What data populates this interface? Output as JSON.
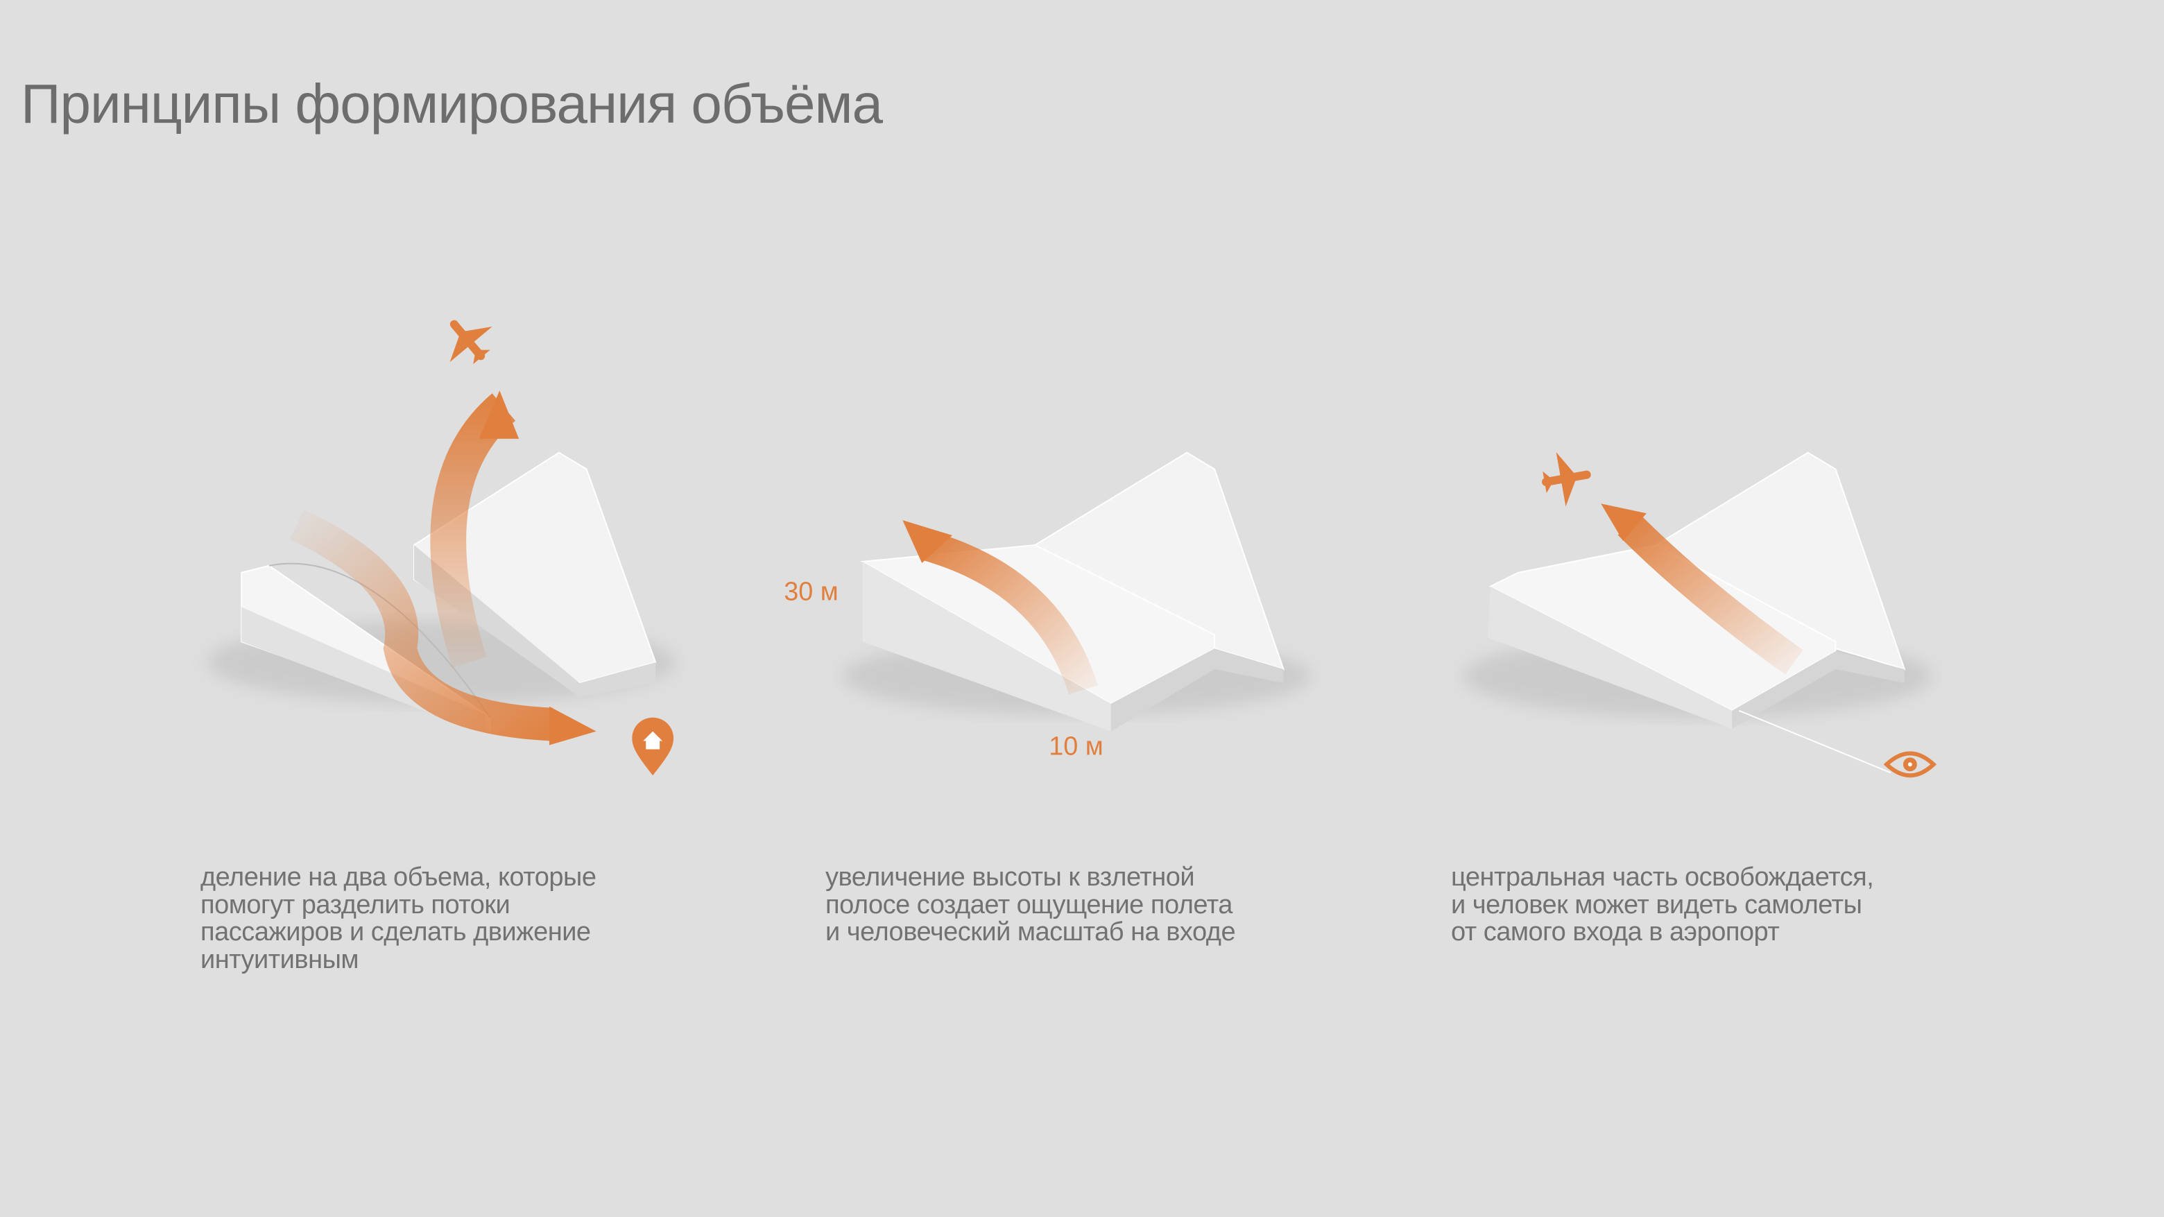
{
  "title": "Принципы формирования объёма",
  "colors": {
    "background": "#dfdfdf",
    "accent": "#e07f3e",
    "text": "#6d6d6d"
  },
  "diagrams": [
    {
      "icons": [
        "airplane-icon",
        "home-pin-icon"
      ],
      "caption": [
        "деление на два объема, которые",
        "помогут разделить потоки",
        "пассажиров и сделать движение",
        "интуитивным"
      ]
    },
    {
      "labels": {
        "height": "30 м",
        "width": "10 м"
      },
      "caption": [
        "увеличение высоты к взлетной",
        "полосе создает ощущение полета",
        "и человеческий масштаб на входе"
      ]
    },
    {
      "icons": [
        "airplane-icon",
        "eye-icon"
      ],
      "caption": [
        "центральная часть освобождается,",
        "и человек может видеть самолеты",
        "от самого входа в аэропорт"
      ]
    }
  ]
}
